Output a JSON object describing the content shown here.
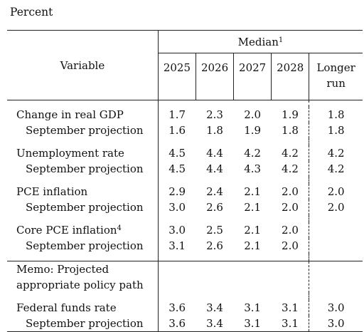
{
  "unit_label": "Percent",
  "header": {
    "variable": "Variable",
    "median": "Median",
    "median_footnote": "1",
    "years": [
      "2025",
      "2026",
      "2027",
      "2028"
    ],
    "longer_run_line1": "Longer",
    "longer_run_line2": "run"
  },
  "rows": {
    "gdp": {
      "label": "Change in real GDP",
      "values": [
        "1.7",
        "2.3",
        "2.0",
        "1.9"
      ],
      "longer_run": "1.8"
    },
    "gdp_sep": {
      "label": "September projection",
      "values": [
        "1.6",
        "1.8",
        "1.9",
        "1.8"
      ],
      "longer_run": "1.8"
    },
    "unemp": {
      "label": "Unemployment rate",
      "values": [
        "4.5",
        "4.4",
        "4.2",
        "4.2"
      ],
      "longer_run": "4.2"
    },
    "unemp_sep": {
      "label": "September projection",
      "values": [
        "4.5",
        "4.4",
        "4.3",
        "4.2"
      ],
      "longer_run": "4.2"
    },
    "pce": {
      "label": "PCE inflation",
      "values": [
        "2.9",
        "2.4",
        "2.1",
        "2.0"
      ],
      "longer_run": "2.0"
    },
    "pce_sep": {
      "label": "September projection",
      "values": [
        "3.0",
        "2.6",
        "2.1",
        "2.0"
      ],
      "longer_run": "2.0"
    },
    "core": {
      "label": "Core PCE inflation",
      "footnote": "4",
      "values": [
        "3.0",
        "2.5",
        "2.1",
        "2.0"
      ],
      "longer_run": ""
    },
    "core_sep": {
      "label": "September projection",
      "values": [
        "3.1",
        "2.6",
        "2.1",
        "2.0"
      ],
      "longer_run": ""
    },
    "memo": {
      "line1": "Memo: Projected",
      "line2": "appropriate policy path"
    },
    "ffr": {
      "label": "Federal funds rate",
      "values": [
        "3.6",
        "3.4",
        "3.1",
        "3.1"
      ],
      "longer_run": "3.0"
    },
    "ffr_sep": {
      "label": "September projection",
      "values": [
        "3.6",
        "3.4",
        "3.1",
        "3.1"
      ],
      "longer_run": "3.0"
    }
  }
}
